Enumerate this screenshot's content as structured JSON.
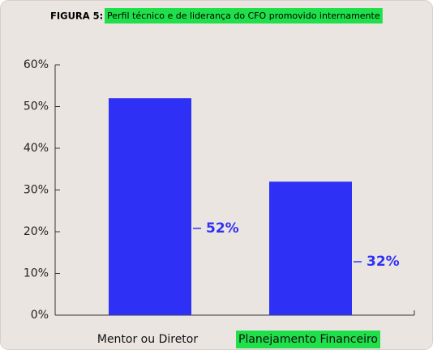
{
  "chart_data": {
    "type": "bar",
    "figure_label": "FIGURA 5:",
    "title": "Perfil técnico e de liderança do CFO promovido internamente",
    "categories": [
      "Mentor ou Diretor",
      "Planejamento Financeiro"
    ],
    "values": [
      52,
      32
    ],
    "value_labels": [
      "52%",
      "32%"
    ],
    "color": "#2e31f5",
    "ylim": [
      0,
      60
    ],
    "yticks": [
      {
        "value": 0,
        "label": "0%"
      },
      {
        "value": 10,
        "label": "10%"
      },
      {
        "value": 20,
        "label": "20%"
      },
      {
        "value": 30,
        "label": "30%"
      },
      {
        "value": 40,
        "label": "40%"
      },
      {
        "value": 50,
        "label": "50%"
      },
      {
        "value": 60,
        "label": "60%"
      }
    ]
  }
}
